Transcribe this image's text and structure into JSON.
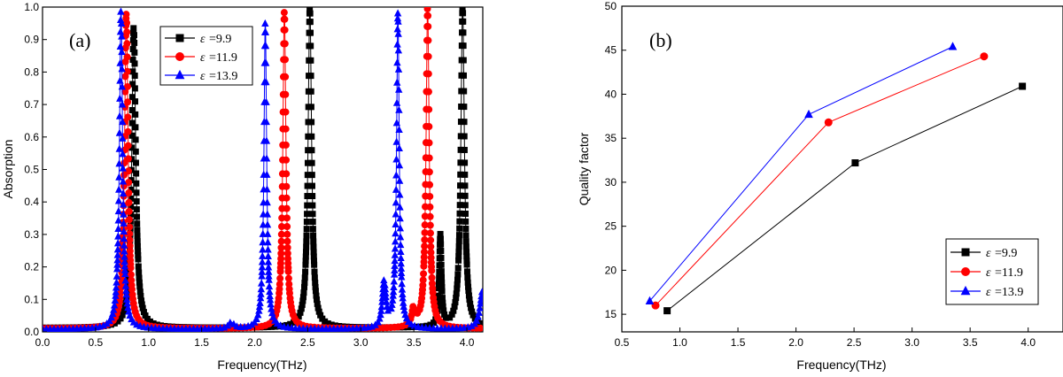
{
  "colors": {
    "black": "#000000",
    "red": "#ff0000",
    "blue": "#0000ff"
  },
  "chart_data": [
    {
      "type": "line",
      "panel_label": "(a)",
      "xlabel": "Frequency(THz)",
      "ylabel": "Absorption",
      "xlim": [
        0.0,
        4.15
      ],
      "ylim": [
        0.0,
        1.0
      ],
      "xticks": [
        "0.0",
        "0.5",
        "1.0",
        "1.5",
        "2.0",
        "2.5",
        "3.0",
        "3.5",
        "4.0"
      ],
      "yticks": [
        "0.0",
        "0.1",
        "0.2",
        "0.3",
        "0.4",
        "0.5",
        "0.6",
        "0.7",
        "0.8",
        "0.9",
        "1.0"
      ],
      "legend": {
        "position": "top-right",
        "symbol": "ε",
        "entries": [
          "=9.9",
          "=11.9",
          "=13.9"
        ]
      },
      "series": [
        {
          "name": "ε=9.9",
          "color": "#000000",
          "marker": "square",
          "baseline": 0.012,
          "peaks": [
            {
              "f": 0.86,
              "a": 0.93,
              "w": 0.045
            },
            {
              "f": 2.52,
              "a": 0.99,
              "w": 0.04
            },
            {
              "f": 3.96,
              "a": 0.99,
              "w": 0.04
            },
            {
              "f": 3.75,
              "a": 0.28,
              "w": 0.025
            }
          ]
        },
        {
          "name": "ε=11.9",
          "color": "#ff0000",
          "marker": "circle",
          "baseline": 0.01,
          "peaks": [
            {
              "f": 0.79,
              "a": 0.97,
              "w": 0.04
            },
            {
              "f": 2.28,
              "a": 0.98,
              "w": 0.035
            },
            {
              "f": 3.63,
              "a": 0.99,
              "w": 0.035
            },
            {
              "f": 3.5,
              "a": 0.06,
              "w": 0.04
            }
          ]
        },
        {
          "name": "ε=13.9",
          "color": "#0000ff",
          "marker": "triangle",
          "baseline": 0.008,
          "peaks": [
            {
              "f": 0.74,
              "a": 0.99,
              "w": 0.035
            },
            {
              "f": 2.1,
              "a": 0.95,
              "w": 0.03
            },
            {
              "f": 3.35,
              "a": 0.97,
              "w": 0.03
            },
            {
              "f": 3.22,
              "a": 0.14,
              "w": 0.04
            },
            {
              "f": 1.78,
              "a": 0.02,
              "w": 0.06
            },
            {
              "f": 4.15,
              "a": 0.12,
              "w": 0.06
            }
          ]
        }
      ]
    },
    {
      "type": "line",
      "panel_label": "(b)",
      "xlabel": "Frequency(THz)",
      "ylabel": "Quality factor",
      "xlim": [
        0.5,
        4.3
      ],
      "ylim": [
        13,
        50
      ],
      "xticks": [
        "0.5",
        "1.0",
        "1.5",
        "2.0",
        "2.5",
        "3.0",
        "3.5",
        "4.0"
      ],
      "yticks": [
        "15",
        "20",
        "25",
        "30",
        "35",
        "40",
        "45",
        "50"
      ],
      "legend": {
        "position": "bottom-right",
        "symbol": "ε",
        "entries": [
          "=9.9",
          "=11.9",
          "=13.9"
        ]
      },
      "series": [
        {
          "name": "ε=9.9",
          "color": "#000000",
          "marker": "square",
          "x": [
            0.89,
            2.51,
            3.95
          ],
          "y": [
            15.4,
            32.2,
            40.9
          ]
        },
        {
          "name": "ε=11.9",
          "color": "#ff0000",
          "marker": "circle",
          "x": [
            0.79,
            2.28,
            3.62
          ],
          "y": [
            16.0,
            36.8,
            44.3
          ]
        },
        {
          "name": "ε=13.9",
          "color": "#0000ff",
          "marker": "triangle",
          "x": [
            0.74,
            2.11,
            3.35
          ],
          "y": [
            16.5,
            37.7,
            45.4
          ]
        }
      ]
    }
  ]
}
